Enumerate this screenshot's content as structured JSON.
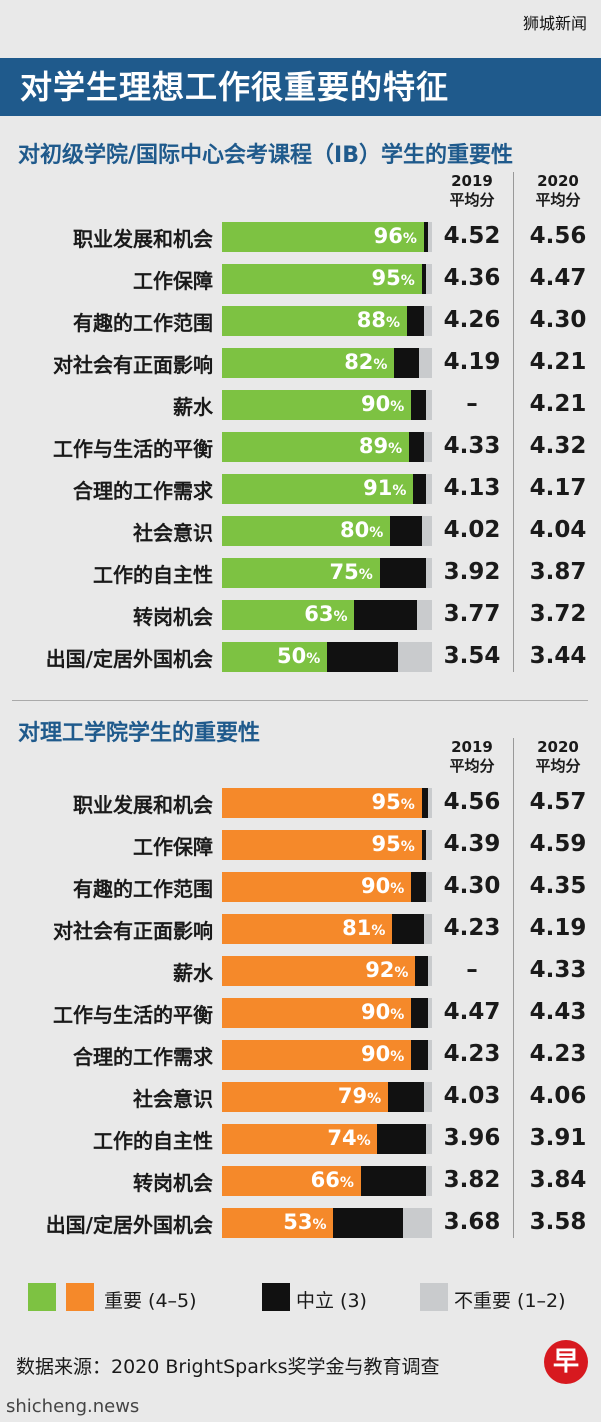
{
  "watermark_top": "狮城新闻",
  "banner_title": "对学生理想工作很重要的特征",
  "colors": {
    "green": "#7dc242",
    "orange": "#f5892a",
    "neutral": "#111111",
    "unimportant": "#c9cbcd",
    "banner": "#1f5a8c"
  },
  "chart_data": [
    {
      "type": "bar",
      "title": "对初级学院/国际中心会考课程（IB）学生的重要性",
      "col_2019": "2019\n平均分",
      "col_2020": "2020\n平均分",
      "rows": [
        {
          "label": "职业发展和机会",
          "important": 96,
          "neutral": 2,
          "unimportant": 2,
          "pct_text": "96",
          "avg_2019": "4.52",
          "avg_2020": "4.56"
        },
        {
          "label": "工作保障",
          "important": 95,
          "neutral": 2,
          "unimportant": 3,
          "pct_text": "95",
          "avg_2019": "4.36",
          "avg_2020": "4.47"
        },
        {
          "label": "有趣的工作范围",
          "important": 88,
          "neutral": 8,
          "unimportant": 4,
          "pct_text": "88",
          "avg_2019": "4.26",
          "avg_2020": "4.30"
        },
        {
          "label": "对社会有正面影响",
          "important": 82,
          "neutral": 12,
          "unimportant": 6,
          "pct_text": "82",
          "avg_2019": "4.19",
          "avg_2020": "4.21"
        },
        {
          "label": "薪水",
          "important": 90,
          "neutral": 7,
          "unimportant": 3,
          "pct_text": "90",
          "avg_2019": "–",
          "avg_2020": "4.21"
        },
        {
          "label": "工作与生活的平衡",
          "important": 89,
          "neutral": 7,
          "unimportant": 4,
          "pct_text": "89",
          "avg_2019": "4.33",
          "avg_2020": "4.32"
        },
        {
          "label": "合理的工作需求",
          "important": 91,
          "neutral": 6,
          "unimportant": 3,
          "pct_text": "91",
          "avg_2019": "4.13",
          "avg_2020": "4.17"
        },
        {
          "label": "社会意识",
          "important": 80,
          "neutral": 15,
          "unimportant": 5,
          "pct_text": "80",
          "avg_2019": "4.02",
          "avg_2020": "4.04"
        },
        {
          "label": "工作的自主性",
          "important": 75,
          "neutral": 22,
          "unimportant": 3,
          "pct_text": "75",
          "avg_2019": "3.92",
          "avg_2020": "3.87"
        },
        {
          "label": "转岗机会",
          "important": 63,
          "neutral": 30,
          "unimportant": 7,
          "pct_text": "63",
          "avg_2019": "3.77",
          "avg_2020": "3.72"
        },
        {
          "label": "出国/定居外国机会",
          "important": 50,
          "neutral": 34,
          "unimportant": 16,
          "pct_text": "50",
          "avg_2019": "3.54",
          "avg_2020": "3.44"
        }
      ]
    },
    {
      "type": "bar",
      "title": "对理工学院学生的重要性",
      "col_2019": "2019\n平均分",
      "col_2020": "2020\n平均分",
      "rows": [
        {
          "label": "职业发展和机会",
          "important": 95,
          "neutral": 3,
          "unimportant": 2,
          "pct_text": "95",
          "avg_2019": "4.56",
          "avg_2020": "4.57"
        },
        {
          "label": "工作保障",
          "important": 95,
          "neutral": 2,
          "unimportant": 3,
          "pct_text": "95",
          "avg_2019": "4.39",
          "avg_2020": "4.59"
        },
        {
          "label": "有趣的工作范围",
          "important": 90,
          "neutral": 7,
          "unimportant": 3,
          "pct_text": "90",
          "avg_2019": "4.30",
          "avg_2020": "4.35"
        },
        {
          "label": "对社会有正面影响",
          "important": 81,
          "neutral": 15,
          "unimportant": 4,
          "pct_text": "81",
          "avg_2019": "4.23",
          "avg_2020": "4.19"
        },
        {
          "label": "薪水",
          "important": 92,
          "neutral": 6,
          "unimportant": 2,
          "pct_text": "92",
          "avg_2019": "–",
          "avg_2020": "4.33"
        },
        {
          "label": "工作与生活的平衡",
          "important": 90,
          "neutral": 8,
          "unimportant": 2,
          "pct_text": "90",
          "avg_2019": "4.47",
          "avg_2020": "4.43"
        },
        {
          "label": "合理的工作需求",
          "important": 90,
          "neutral": 8,
          "unimportant": 2,
          "pct_text": "90",
          "avg_2019": "4.23",
          "avg_2020": "4.23"
        },
        {
          "label": "社会意识",
          "important": 79,
          "neutral": 17,
          "unimportant": 4,
          "pct_text": "79",
          "avg_2019": "4.03",
          "avg_2020": "4.06"
        },
        {
          "label": "工作的自主性",
          "important": 74,
          "neutral": 23,
          "unimportant": 3,
          "pct_text": "74",
          "avg_2019": "3.96",
          "avg_2020": "3.91"
        },
        {
          "label": "转岗机会",
          "important": 66,
          "neutral": 31,
          "unimportant": 3,
          "pct_text": "66",
          "avg_2019": "3.82",
          "avg_2020": "3.84"
        },
        {
          "label": "出国/定居外国机会",
          "important": 53,
          "neutral": 33,
          "unimportant": 14,
          "pct_text": "53",
          "avg_2019": "3.68",
          "avg_2020": "3.58"
        }
      ]
    }
  ],
  "legend": {
    "important": "重要 (4–5)",
    "neutral": "中立 (3)",
    "unimportant": "不重要 (1–2)"
  },
  "source": "数据来源：2020 BrightSparks奖学金与教育调查",
  "logo_text": "早",
  "watermark_bottom": "shicheng.news"
}
